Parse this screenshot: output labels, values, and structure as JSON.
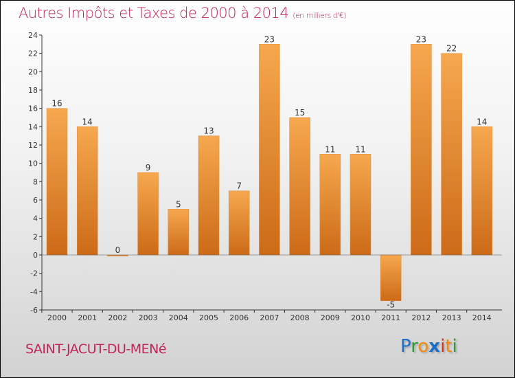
{
  "header": {
    "title": "Autres Impôts et Taxes de 2000 à 2014",
    "unit": "(en milliers d'€)"
  },
  "footer": {
    "city": "SAINT-JACUT-DU-MENé",
    "logo": "Proxiti"
  },
  "colors": {
    "bar_top": "#f6a84f",
    "bar_bottom": "#cc6a18",
    "title": "#c0245a"
  },
  "chart_data": {
    "type": "bar",
    "title": "Autres Impôts et Taxes de 2000 à 2014",
    "ylabel": "(en milliers d'€)",
    "categories": [
      "2000",
      "2001",
      "2002",
      "2003",
      "2004",
      "2005",
      "2006",
      "2007",
      "2008",
      "2009",
      "2010",
      "2011",
      "2012",
      "2013",
      "2014"
    ],
    "values": [
      16,
      14,
      0,
      9,
      5,
      13,
      7,
      23,
      15,
      11,
      11,
      -5,
      23,
      22,
      14
    ],
    "ylim": [
      -6,
      24
    ],
    "yticks": [
      -6,
      -4,
      -2,
      0,
      2,
      4,
      6,
      8,
      10,
      12,
      14,
      16,
      18,
      20,
      22,
      24
    ],
    "grid": false
  }
}
